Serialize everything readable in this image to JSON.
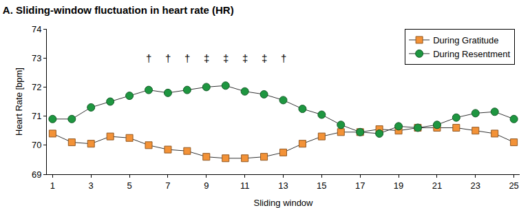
{
  "chart_data": {
    "type": "line",
    "title": "A. Sliding-window fluctuation in heart rate (HR)",
    "x_label": "Sliding window",
    "y_label": "Heart Rate [bpm]",
    "x": [
      1,
      2,
      3,
      4,
      5,
      6,
      7,
      8,
      9,
      10,
      11,
      12,
      13,
      14,
      15,
      16,
      17,
      18,
      19,
      20,
      21,
      22,
      23,
      24,
      25
    ],
    "series": [
      {
        "name": "During Gratitude",
        "color": "#f39237",
        "marker": "square",
        "values": [
          70.4,
          70.1,
          70.05,
          70.3,
          70.25,
          70.0,
          69.85,
          69.8,
          69.6,
          69.55,
          69.55,
          69.6,
          69.75,
          70.05,
          70.3,
          70.45,
          70.45,
          70.55,
          70.5,
          70.6,
          70.6,
          70.6,
          70.5,
          70.4,
          70.1
        ]
      },
      {
        "name": "During Resentment",
        "color": "#1e9640",
        "marker": "circle",
        "values": [
          70.9,
          70.9,
          71.3,
          71.5,
          71.7,
          71.9,
          71.8,
          71.9,
          72.0,
          72.05,
          71.85,
          71.75,
          71.55,
          71.25,
          71.05,
          70.7,
          70.45,
          70.4,
          70.65,
          70.6,
          70.7,
          70.95,
          71.1,
          71.15,
          70.9
        ]
      }
    ],
    "xlim": [
      0.7,
      25.3
    ],
    "xticks": [
      1,
      3,
      5,
      7,
      9,
      11,
      13,
      15,
      17,
      19,
      21,
      23,
      25
    ],
    "ylim": [
      69,
      74
    ],
    "yticks": [
      69,
      70,
      71,
      72,
      73,
      74
    ],
    "grid": false,
    "legend": "upper right",
    "annotations": [
      {
        "x": 6,
        "y": 73,
        "text": "†"
      },
      {
        "x": 7,
        "y": 73,
        "text": "†"
      },
      {
        "x": 8,
        "y": 73,
        "text": "†"
      },
      {
        "x": 9,
        "y": 73,
        "text": "‡"
      },
      {
        "x": 10,
        "y": 73,
        "text": "‡"
      },
      {
        "x": 11,
        "y": 73,
        "text": "‡"
      },
      {
        "x": 12,
        "y": 73,
        "text": "‡"
      },
      {
        "x": 13,
        "y": 73,
        "text": "†"
      }
    ]
  }
}
